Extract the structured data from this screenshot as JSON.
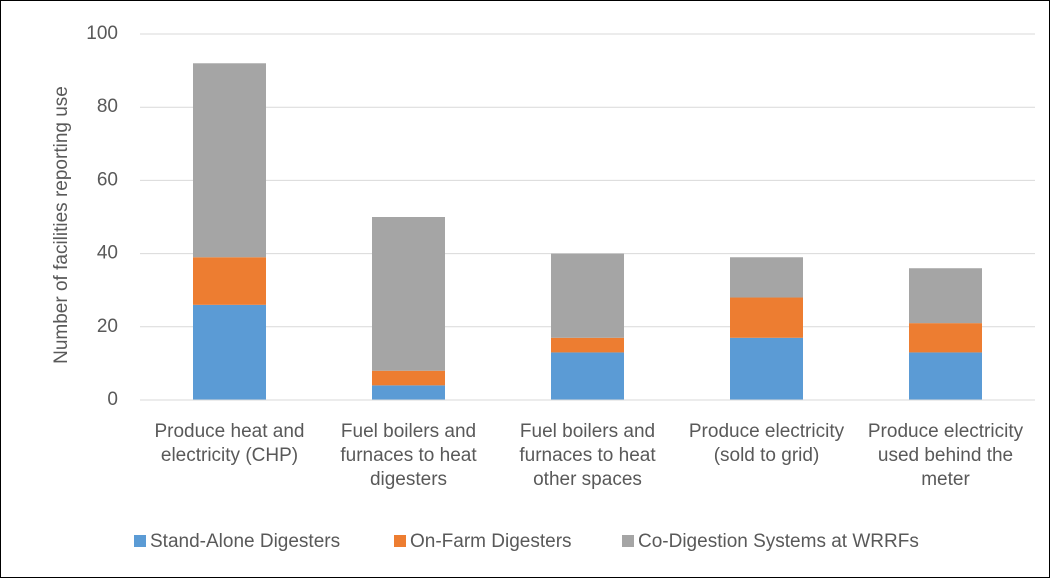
{
  "chart_data": {
    "type": "bar",
    "stacked": true,
    "y_label": "Number of facilities reporting use",
    "categories": [
      "Produce heat and electricity (CHP)",
      "Fuel boilers and furnaces to heat digesters",
      "Fuel boilers and furnaces to heat other spaces",
      "Produce electricity (sold to grid)",
      "Produce electricity used behind the meter"
    ],
    "series": [
      {
        "name": "Stand-Alone Digesters",
        "color": "#5b9bd5",
        "values": [
          26,
          4,
          13,
          17,
          13
        ]
      },
      {
        "name": "On-Farm Digesters",
        "color": "#ed7d31",
        "values": [
          13,
          4,
          4,
          11,
          8
        ]
      },
      {
        "name": "Co-Digestion Systems at WRRFs",
        "color": "#a5a5a5",
        "values": [
          53,
          42,
          23,
          11,
          15
        ]
      }
    ],
    "ylim": [
      0,
      100
    ],
    "yticks": [
      0,
      20,
      40,
      60,
      80,
      100
    ],
    "grid": true
  }
}
